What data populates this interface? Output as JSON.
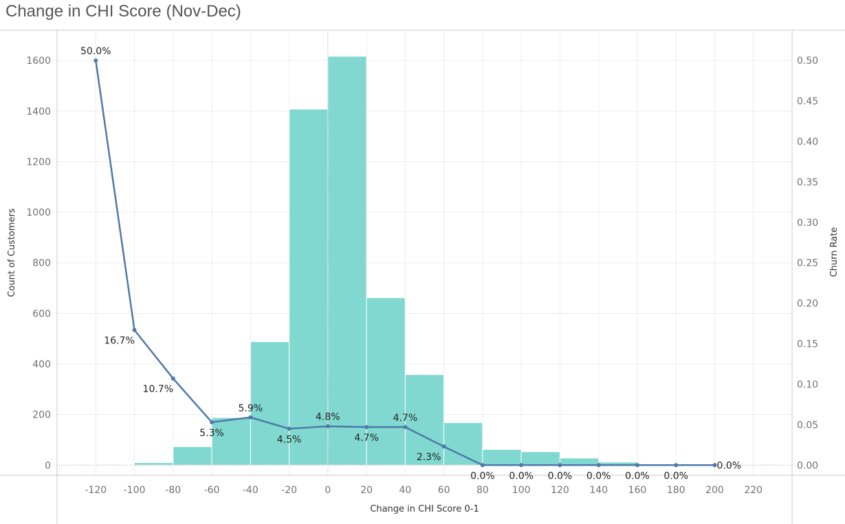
{
  "title": "Change in CHI Score (Nov-Dec)",
  "chart_data": {
    "type": "bar",
    "title": "Change in CHI Score (Nov-Dec)",
    "xlabel": "Change in CHI Score 0-1",
    "ylabel": "Count of Customers",
    "y2label": "Churn Rate",
    "xlim": [
      -140,
      240
    ],
    "ylim": [
      -40,
      1720
    ],
    "y2lim": [
      -0.0125,
      0.5375
    ],
    "x_ticks": [
      "-120",
      "-100",
      "-80",
      "-60",
      "-40",
      "-20",
      "0",
      "20",
      "40",
      "60",
      "80",
      "100",
      "120",
      "140",
      "160",
      "180",
      "200",
      "220"
    ],
    "x_tick_values": [
      -120,
      -100,
      -80,
      -60,
      -40,
      -20,
      0,
      20,
      40,
      60,
      80,
      100,
      120,
      140,
      160,
      180,
      200,
      220
    ],
    "y_ticks": [
      "0",
      "200",
      "400",
      "600",
      "800",
      "1000",
      "1200",
      "1400",
      "1600"
    ],
    "y_tick_values": [
      0,
      200,
      400,
      600,
      800,
      1000,
      1200,
      1400,
      1600
    ],
    "y2_ticks": [
      "0.00",
      "0.05",
      "0.10",
      "0.15",
      "0.20",
      "0.25",
      "0.30",
      "0.35",
      "0.40",
      "0.45",
      "0.50"
    ],
    "y2_tick_values": [
      0,
      0.05,
      0.1,
      0.15,
      0.2,
      0.25,
      0.3,
      0.35,
      0.4,
      0.45,
      0.5
    ],
    "bars": {
      "bin_starts": [
        -120,
        -100,
        -80,
        -60,
        -40,
        -20,
        0,
        20,
        40,
        60,
        80,
        100,
        120,
        140,
        160,
        180,
        200
      ],
      "bin_width": 20,
      "values": [
        2,
        10,
        73,
        188,
        488,
        1408,
        1617,
        662,
        358,
        168,
        62,
        53,
        28,
        12,
        4,
        2,
        2
      ],
      "color": "#80d8d0"
    },
    "line": {
      "name": "Churn Rate",
      "x": [
        -120,
        -100,
        -80,
        -60,
        -40,
        -20,
        0,
        20,
        40,
        60,
        80,
        100,
        120,
        140,
        160,
        180,
        200
      ],
      "values": [
        0.5,
        0.167,
        0.107,
        0.053,
        0.059,
        0.045,
        0.048,
        0.047,
        0.047,
        0.023,
        0.0,
        0.0,
        0.0,
        0.0,
        0.0,
        0.0,
        0.0
      ],
      "labels": [
        "50.0%",
        "16.7%",
        "10.7%",
        "5.3%",
        "5.9%",
        "4.5%",
        "4.8%",
        "4.7%",
        "4.7%",
        "2.3%",
        "0.0%",
        "0.0%",
        "0.0%",
        "0.0%",
        "0.0%",
        "0.0%",
        "0.0%"
      ],
      "label_position": [
        "above",
        "below-left",
        "below-left",
        "below",
        "above",
        "below",
        "above",
        "below",
        "above",
        "below-left",
        "below",
        "below",
        "below",
        "below",
        "below",
        "below",
        "right"
      ],
      "color": "#4e79a7"
    },
    "grid": true,
    "zero_line": true
  },
  "colors": {
    "bar": "#80d8d0",
    "line": "#4e79a7",
    "grid": "#ececec",
    "axis": "#c8c8c8"
  }
}
